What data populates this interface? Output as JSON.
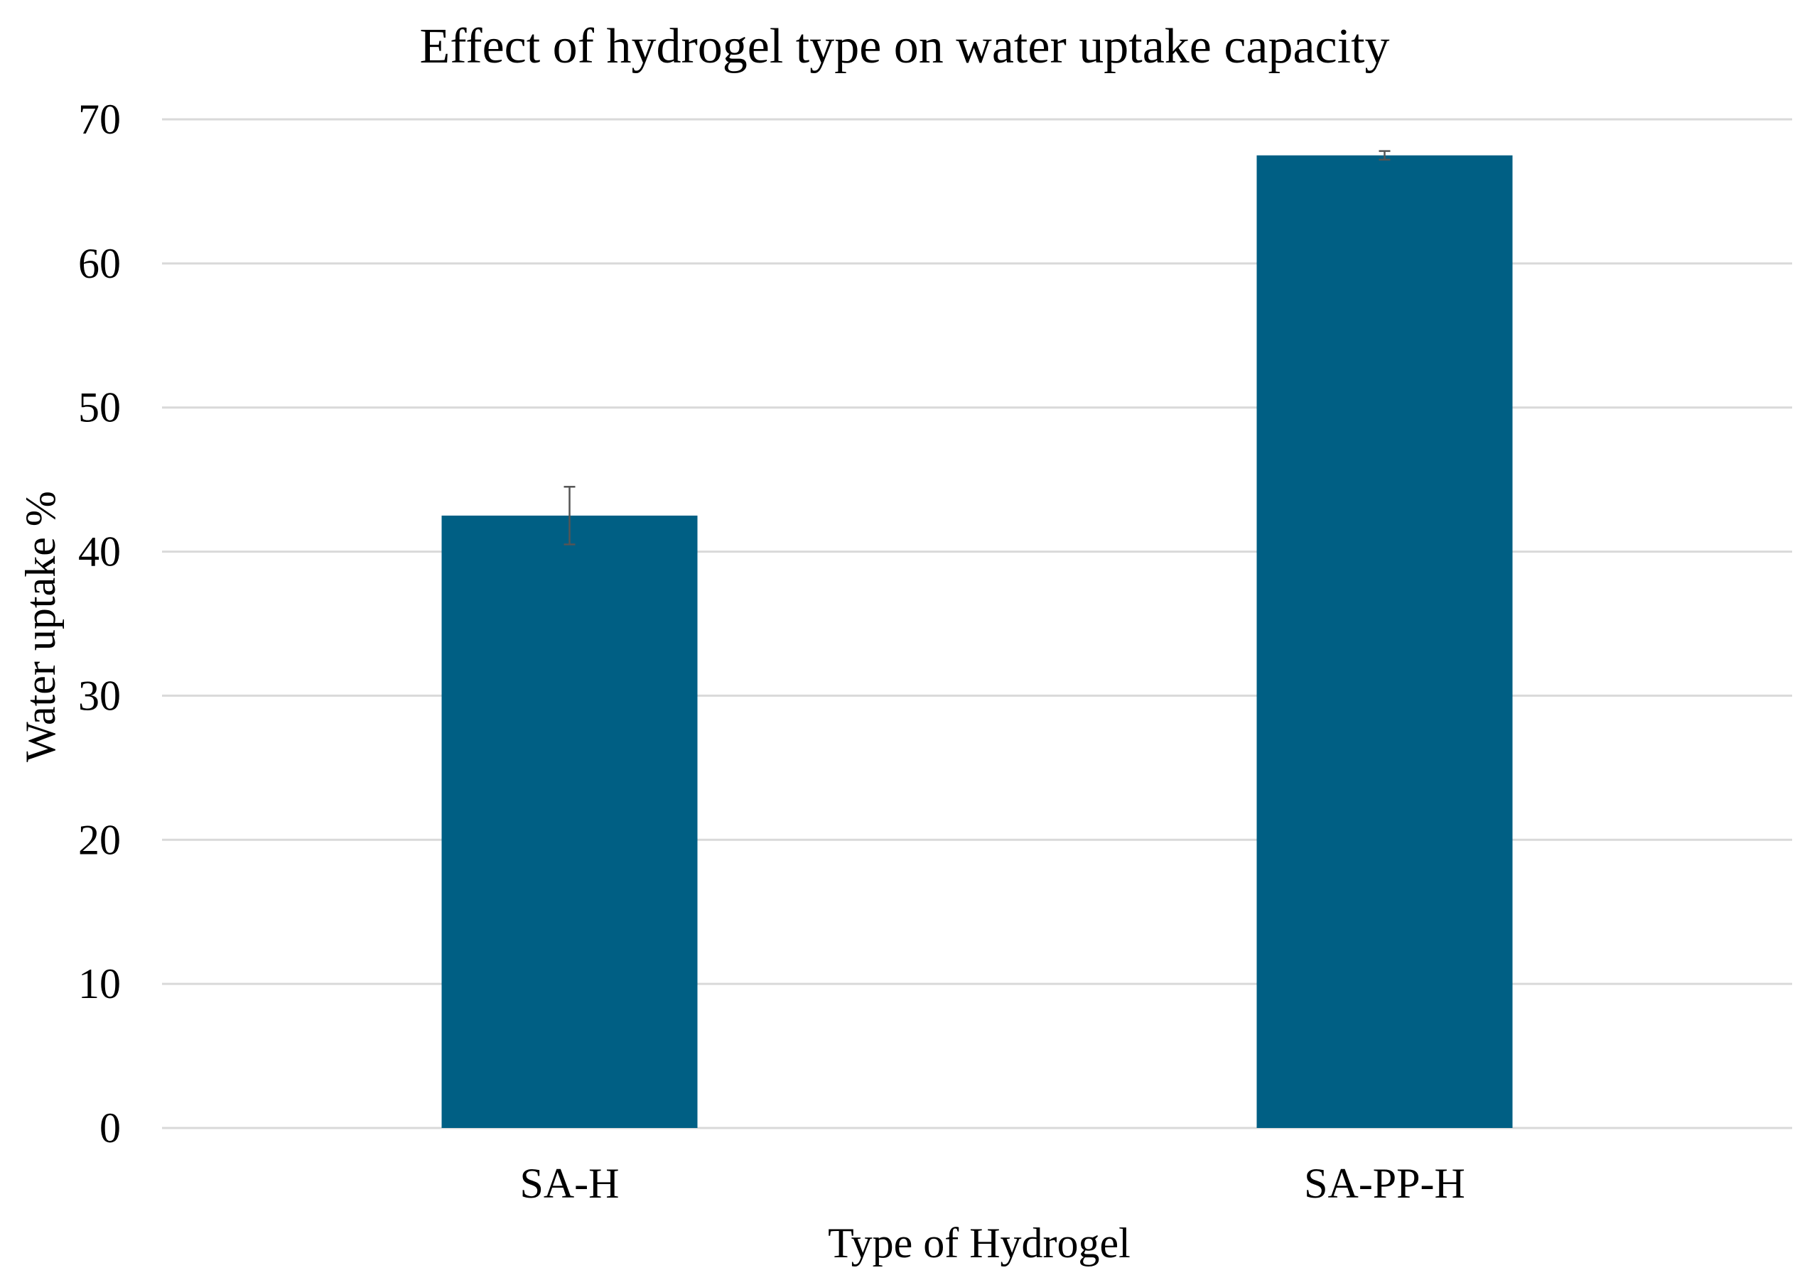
{
  "chart_data": {
    "type": "bar",
    "title": "Effect of hydrogel type on water uptake capacity",
    "xlabel": "Type of Hydrogel",
    "ylabel": "Water uptake %",
    "categories": [
      "SA-H",
      "SA-PP-H"
    ],
    "values": [
      42.5,
      67.5
    ],
    "error": [
      2.0,
      0.3
    ],
    "ylim": [
      0,
      70
    ],
    "yticks": [
      "0",
      "10",
      "20",
      "30",
      "40",
      "50",
      "60",
      "70"
    ],
    "grid": true,
    "legend": "none",
    "bar_color": "#005F84",
    "grid_color": "#D9D9D9",
    "error_color": "#555555"
  }
}
